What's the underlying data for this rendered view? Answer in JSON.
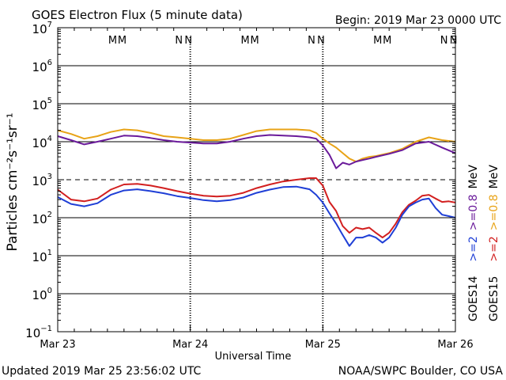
{
  "chart_data": {
    "type": "line",
    "title": "GOES Electron Flux (5 minute data)",
    "begin_label": "Begin: 2019 Mar 23 0000 UTC",
    "xlabel": "Universal Time",
    "ylabel": "Particles cm⁻²s⁻¹sr⁻¹",
    "x_ticks": [
      "Mar 23",
      "Mar 24",
      "Mar 25",
      "Mar 26"
    ],
    "xlim_days": [
      0,
      3
    ],
    "ylim_log10": [
      -1,
      7
    ],
    "y_scale": "log",
    "y_tick_labels": [
      {
        "base": "10",
        "exp": "7"
      },
      {
        "base": "10",
        "exp": "6"
      },
      {
        "base": "10",
        "exp": "5"
      },
      {
        "base": "10",
        "exp": "4"
      },
      {
        "base": "10",
        "exp": "3"
      },
      {
        "base": "10",
        "exp": "2"
      },
      {
        "base": "10",
        "exp": "1"
      },
      {
        "base": "10",
        "exp": "0"
      },
      {
        "base": "10",
        "exp": "−1"
      }
    ],
    "threshold": {
      "value": 1000,
      "style": "dashed"
    },
    "markers": {
      "M_days": [
        0.45,
        1.45,
        2.45
      ],
      "N_days": [
        0.95,
        1.95,
        2.95
      ],
      "M_label": "M",
      "N_label": "N",
      "colors": {
        "GOES14": "#1f3fd6",
        "GOES15": "#d21f1f"
      }
    },
    "right_legend": {
      "GOES14": {
        "label": "GOES14",
        "items": [
          {
            "text": ">=2",
            "color": "#1f3fd6"
          },
          {
            "text": ">=0.8",
            "color": "#6a1a9a"
          },
          {
            "text": "MeV",
            "color": "#000000"
          }
        ]
      },
      "GOES15": {
        "label": "GOES15",
        "items": [
          {
            "text": ">=2",
            "color": "#d21f1f"
          },
          {
            "text": ">=0.8",
            "color": "#e8a317"
          },
          {
            "text": "MeV",
            "color": "#000000"
          }
        ]
      }
    },
    "series": [
      {
        "key": "g15_08",
        "color": "#e8a317",
        "x": [
          0,
          0.1,
          0.2,
          0.3,
          0.4,
          0.5,
          0.6,
          0.7,
          0.8,
          0.9,
          1.0,
          1.1,
          1.2,
          1.3,
          1.4,
          1.5,
          1.6,
          1.7,
          1.8,
          1.9,
          1.95,
          2.0,
          2.05,
          2.1,
          2.15,
          2.2,
          2.25,
          2.3,
          2.35,
          2.4,
          2.5,
          2.6,
          2.7,
          2.8,
          2.9,
          3.0
        ],
        "y": [
          20000,
          16000,
          12000,
          14000,
          18000,
          21000,
          20000,
          17000,
          14000,
          13000,
          12000,
          11000,
          11000,
          12000,
          15000,
          19000,
          21000,
          21000,
          21000,
          20000,
          17000,
          12000,
          9000,
          7000,
          5000,
          3600,
          3000,
          3600,
          4000,
          4200,
          5000,
          6500,
          10000,
          13000,
          11000,
          10000
        ]
      },
      {
        "key": "g14_08",
        "color": "#6a1a9a",
        "x": [
          0,
          0.1,
          0.2,
          0.3,
          0.4,
          0.5,
          0.6,
          0.7,
          0.8,
          0.9,
          1.0,
          1.1,
          1.2,
          1.3,
          1.4,
          1.5,
          1.6,
          1.7,
          1.8,
          1.9,
          1.95,
          2.0,
          2.05,
          2.1,
          2.15,
          2.2,
          2.25,
          2.3,
          2.35,
          2.4,
          2.5,
          2.6,
          2.7,
          2.8,
          2.9,
          3.0
        ],
        "y": [
          14000,
          11000,
          8500,
          10000,
          12000,
          14500,
          14000,
          12500,
          11000,
          10000,
          9500,
          9000,
          9000,
          10000,
          12000,
          14000,
          15000,
          14500,
          14000,
          13000,
          12000,
          8000,
          4500,
          2000,
          2800,
          2500,
          3000,
          3300,
          3600,
          4000,
          4800,
          6000,
          9000,
          10000,
          7000,
          5000
        ]
      },
      {
        "key": "g15_2",
        "color": "#d21f1f",
        "x": [
          0,
          0.1,
          0.2,
          0.3,
          0.4,
          0.5,
          0.6,
          0.7,
          0.8,
          0.9,
          1.0,
          1.1,
          1.2,
          1.3,
          1.4,
          1.5,
          1.6,
          1.7,
          1.8,
          1.9,
          1.95,
          2.0,
          2.05,
          2.1,
          2.15,
          2.2,
          2.25,
          2.3,
          2.35,
          2.4,
          2.45,
          2.5,
          2.55,
          2.6,
          2.65,
          2.7,
          2.75,
          2.8,
          2.85,
          2.9,
          2.95,
          3.0
        ],
        "y": [
          550,
          300,
          270,
          320,
          550,
          750,
          780,
          700,
          600,
          500,
          430,
          380,
          360,
          380,
          450,
          600,
          750,
          900,
          1000,
          1100,
          1100,
          700,
          260,
          150,
          60,
          40,
          55,
          50,
          55,
          40,
          30,
          40,
          70,
          140,
          220,
          280,
          380,
          400,
          320,
          260,
          270,
          250
        ]
      },
      {
        "key": "g14_2",
        "color": "#1f3fd6",
        "x": [
          0,
          0.1,
          0.2,
          0.3,
          0.4,
          0.5,
          0.6,
          0.7,
          0.8,
          0.9,
          1.0,
          1.1,
          1.2,
          1.3,
          1.4,
          1.5,
          1.6,
          1.7,
          1.8,
          1.9,
          1.95,
          2.0,
          2.05,
          2.1,
          2.15,
          2.2,
          2.25,
          2.3,
          2.35,
          2.4,
          2.45,
          2.5,
          2.55,
          2.6,
          2.65,
          2.7,
          2.75,
          2.8,
          2.85,
          2.9,
          2.95,
          3.0
        ],
        "y": [
          350,
          230,
          200,
          240,
          400,
          520,
          560,
          500,
          440,
          370,
          330,
          290,
          270,
          290,
          340,
          450,
          550,
          640,
          660,
          560,
          400,
          250,
          130,
          70,
          35,
          18,
          30,
          30,
          35,
          30,
          22,
          30,
          55,
          120,
          200,
          250,
          300,
          320,
          180,
          120,
          110,
          100
        ]
      }
    ]
  },
  "footer": {
    "updated": "Updated 2019 Mar 25 23:56:02 UTC",
    "credit": "NOAA/SWPC Boulder, CO USA"
  }
}
